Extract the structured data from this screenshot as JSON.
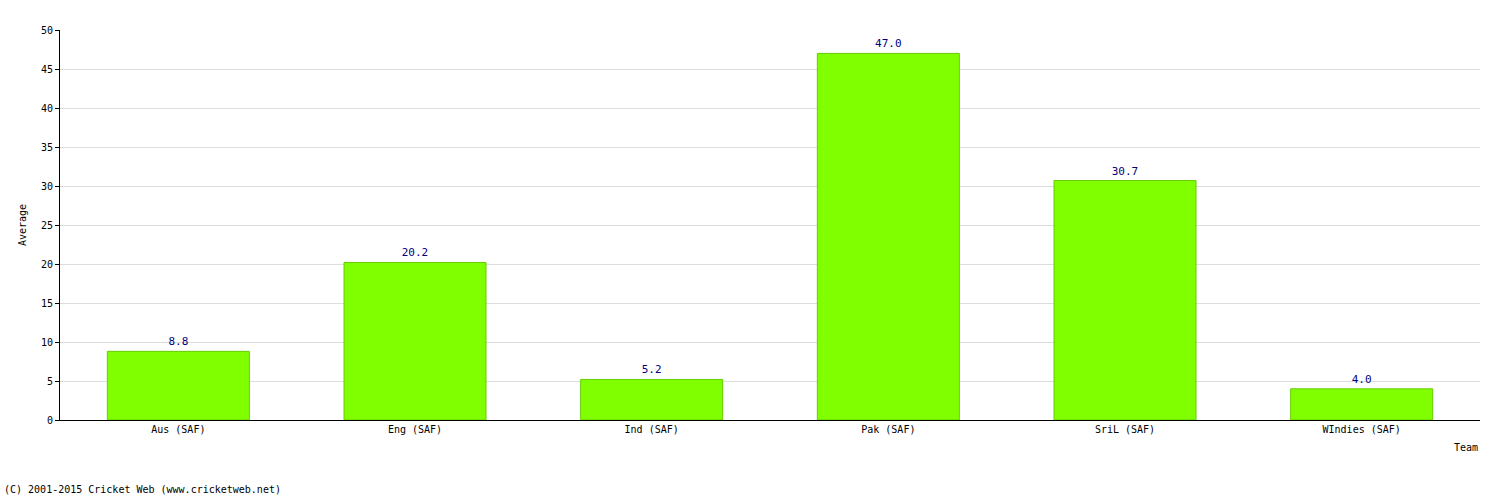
{
  "chart_data": {
    "type": "bar",
    "categories": [
      "Aus (SAF)",
      "Eng (SAF)",
      "Ind (SAF)",
      "Pak (SAF)",
      "SriL (SAF)",
      "WIndies (SAF)"
    ],
    "values": [
      8.8,
      20.2,
      5.2,
      47.0,
      30.7,
      4.0
    ],
    "value_labels": [
      "8.8",
      "20.2",
      "5.2",
      "47.0",
      "30.7",
      "4.0"
    ],
    "data_labels": true,
    "color": "#80ff00",
    "x_label": "Team",
    "y_label": "Average",
    "ylim": [
      0,
      50
    ],
    "yticks": [
      0,
      5,
      10,
      15,
      20,
      25,
      30,
      35,
      40,
      45,
      50
    ],
    "grid": true,
    "annotations": [
      "(C) 2001-2015 Cricket Web (www.cricketweb.net)"
    ]
  }
}
